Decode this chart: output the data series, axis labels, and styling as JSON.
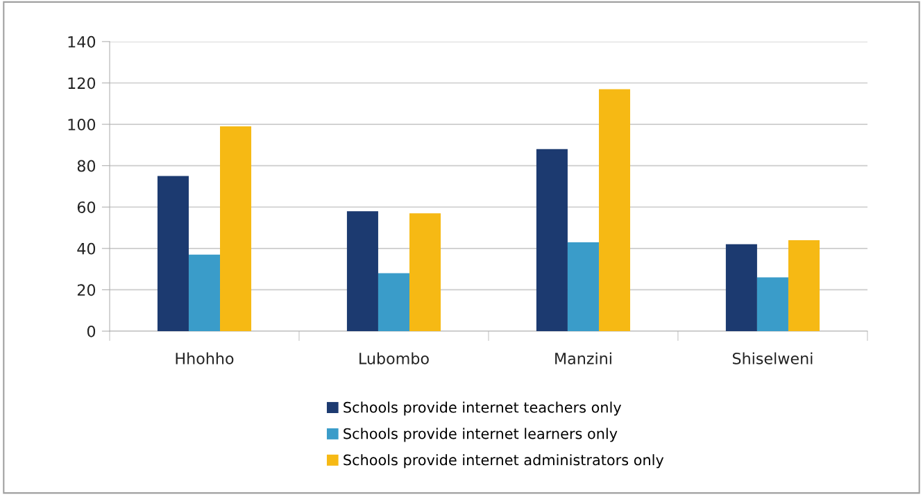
{
  "chart_data": {
    "type": "bar",
    "categories": [
      "Hhohho",
      "Lubombo",
      "Manzini",
      "Shiselweni"
    ],
    "series": [
      {
        "name": "Schools provide internet teachers only",
        "color": "#1c3a70",
        "values": [
          75,
          58,
          88,
          42
        ]
      },
      {
        "name": "Schools provide internet learners only",
        "color": "#3a9cc9",
        "values": [
          37,
          28,
          43,
          26
        ]
      },
      {
        "name": "Schools provide internet administrators only",
        "color": "#f6b914",
        "values": [
          99,
          57,
          117,
          44
        ]
      }
    ],
    "ylim": [
      0,
      140
    ],
    "yticks": [
      0,
      20,
      40,
      60,
      80,
      100,
      120,
      140
    ],
    "grid": "y",
    "legend": "bottom"
  }
}
